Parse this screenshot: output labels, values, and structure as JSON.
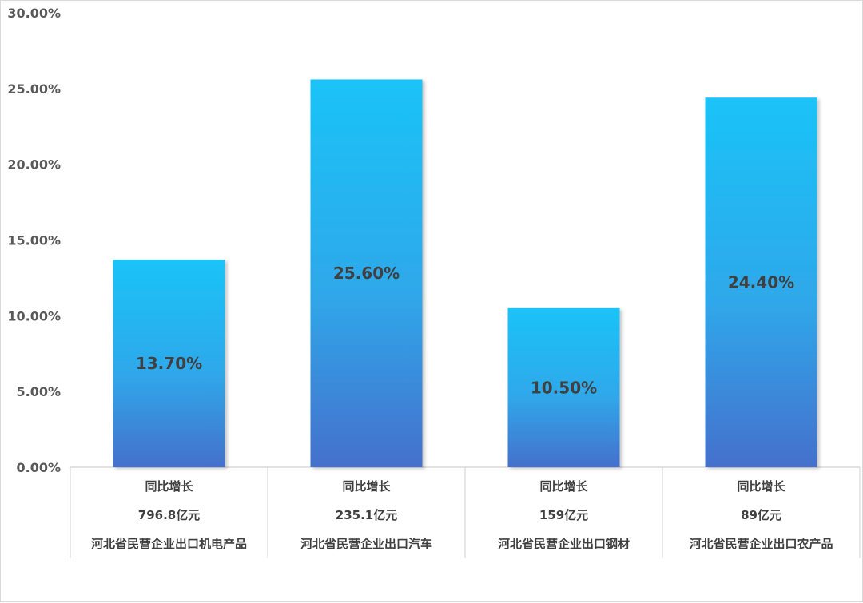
{
  "chart_data": {
    "type": "bar",
    "categories": [
      [
        "同比增长",
        "796.8亿元",
        "河北省民营企业出口机电产品"
      ],
      [
        "同比增长",
        "235.1亿元",
        "河北省民营企业出口汽车"
      ],
      [
        "同比增长",
        "159亿元",
        "河北省民营企业出口钢材"
      ],
      [
        "同比增长",
        "89亿元",
        "河北省民营企业出口农产品"
      ]
    ],
    "values": [
      13.7,
      25.6,
      10.5,
      24.4
    ],
    "data_labels": [
      "13.70%",
      "25.60%",
      "10.50%",
      "24.40%"
    ],
    "y_ticks": [
      "0.00%",
      "5.00%",
      "10.00%",
      "15.00%",
      "20.00%",
      "25.00%",
      "30.00%"
    ],
    "ylim": [
      0,
      30
    ],
    "grid": false,
    "legend": "none",
    "colors": {
      "bar_top": "#1ac3f8",
      "bar_bottom": "#4570cc",
      "text": "#404040",
      "axis": "#d9d9d9"
    }
  }
}
